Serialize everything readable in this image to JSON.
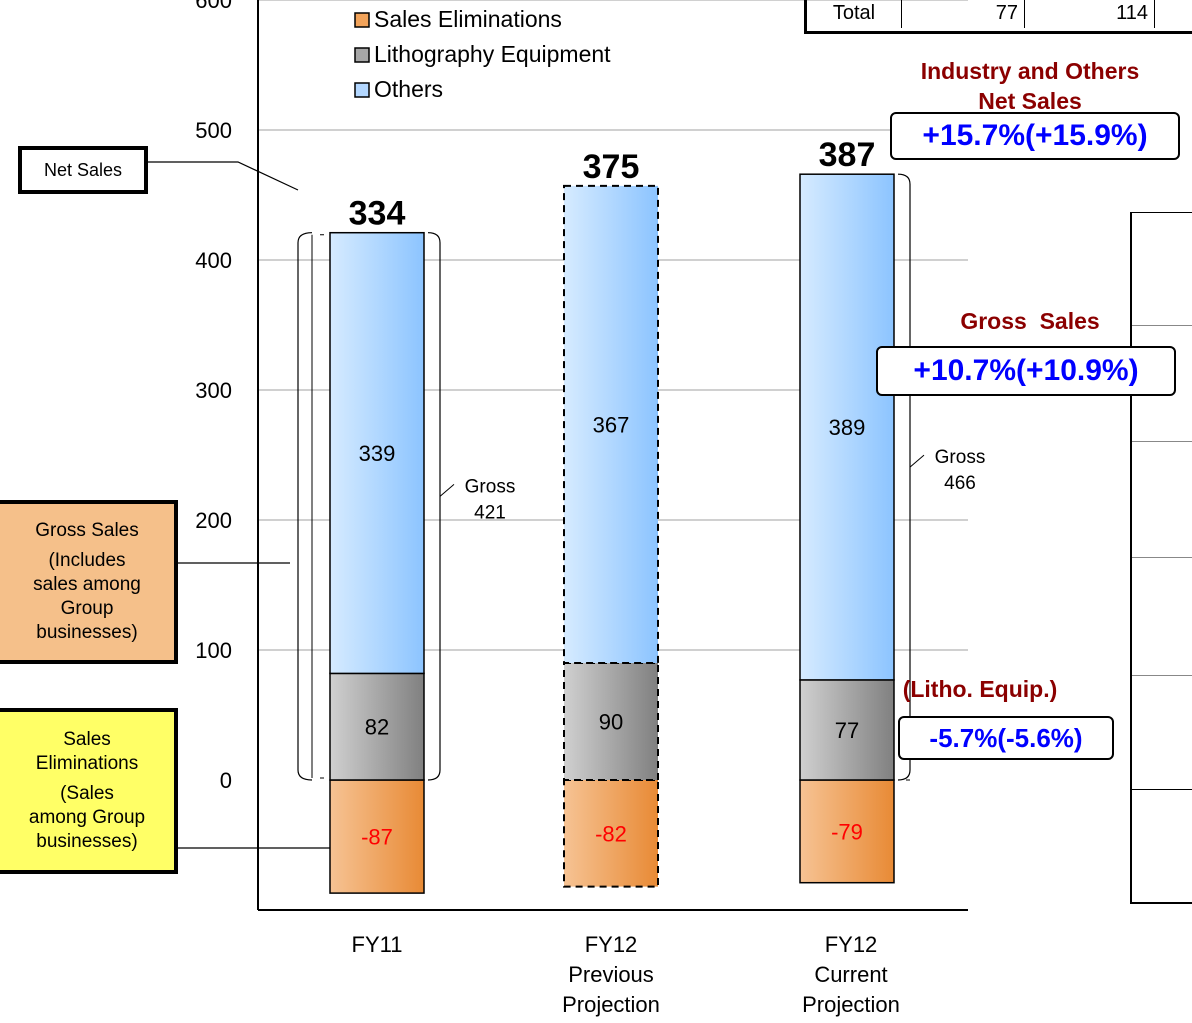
{
  "chart_data": {
    "type": "bar",
    "stacked": true,
    "categories": [
      "FY11",
      "FY12 Previous Projection",
      "FY12 Current Projection"
    ],
    "category_lines": [
      [
        "FY11"
      ],
      [
        "FY12",
        "Previous",
        "Projection"
      ],
      [
        "FY12",
        "Current",
        "Projection"
      ]
    ],
    "series": [
      {
        "name": "Sales Eliminations",
        "values": [
          -87,
          -82,
          -79
        ],
        "color": "#f2a35a"
      },
      {
        "name": "Lithography Equipment",
        "values": [
          82,
          90,
          77
        ],
        "color": "#a6a6a6"
      },
      {
        "name": "Others",
        "values": [
          339,
          367,
          389
        ],
        "color": "#b3d7ff"
      }
    ],
    "legend_order": [
      "Sales Eliminations",
      "Lithography Equipment",
      "Others"
    ],
    "legend_placement": "top-left",
    "net_totals": [
      "334",
      "375",
      "387"
    ],
    "gross_labels": [
      {
        "label": "Gross",
        "value": "421"
      },
      null,
      {
        "label": "Gross",
        "value": "466"
      }
    ],
    "projection_dashed": [
      false,
      true,
      false
    ],
    "ylim": [
      -100,
      600
    ],
    "yticks": [
      0,
      100,
      200,
      300,
      400,
      500,
      600
    ],
    "ytick_labels": [
      "0",
      "100",
      "200",
      "300",
      "400",
      "500",
      "600"
    ],
    "grid": true
  },
  "callouts": {
    "net_sales": "Net Sales",
    "gross_sales": [
      "Gross Sales",
      "(Includes",
      "sales among",
      "Group",
      "businesses)"
    ],
    "eliminations": [
      "Sales",
      "Eliminations",
      "(Sales",
      "among Group",
      "businesses)"
    ]
  },
  "growth": {
    "industry_header": [
      "Industry and Others",
      "Net Sales"
    ],
    "net_pct": "+15.7%(+15.9%)",
    "gross_header": "Gross  Sales",
    "gross_pct": "+10.7%(+10.9%)",
    "litho_header": "(Litho. Equip.)",
    "litho_pct": "-5.7%(-5.6%)"
  },
  "table_fragment": {
    "row_label": "Total",
    "values": [
      "77",
      "114"
    ]
  },
  "colors": {
    "eliminations_box": "#ffff66",
    "gross_box": "#f5c08a",
    "growth_text": "#0000ff",
    "header_text": "#8b0000",
    "negative_label": "#ff0000"
  }
}
